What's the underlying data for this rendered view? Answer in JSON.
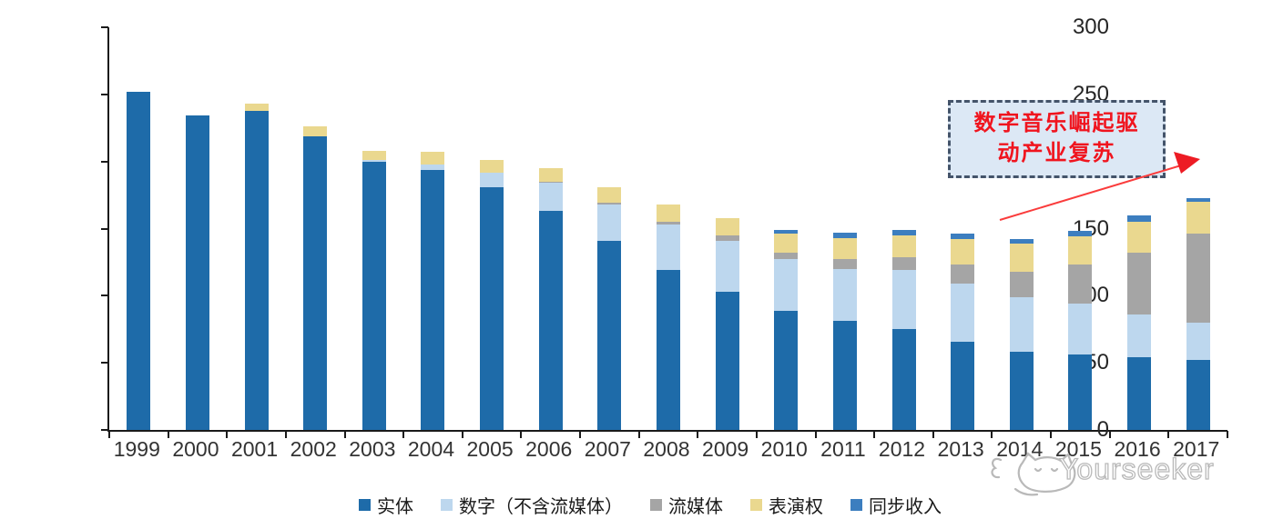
{
  "chart_data": {
    "type": "bar",
    "stacked": true,
    "categories": [
      "1999",
      "2000",
      "2001",
      "2002",
      "2003",
      "2004",
      "2005",
      "2006",
      "2007",
      "2008",
      "2009",
      "2010",
      "2011",
      "2012",
      "2013",
      "2014",
      "2015",
      "2016",
      "2017"
    ],
    "series": [
      {
        "name": "实体",
        "color": "#1e6ba9",
        "values": [
          252,
          234,
          238,
          219,
          200,
          194,
          181,
          163,
          141,
          119,
          103,
          89,
          81,
          75,
          66,
          58,
          56,
          54,
          52
        ]
      },
      {
        "name": "数字（不含流媒体）",
        "color": "#bdd7ee",
        "values": [
          0,
          0,
          0,
          0,
          1,
          4,
          11,
          21,
          27,
          34,
          38,
          38,
          39,
          44,
          43,
          41,
          38,
          32,
          28
        ]
      },
      {
        "name": "流媒体",
        "color": "#a5a5a5",
        "values": [
          0,
          0,
          0,
          0,
          0,
          0,
          0,
          1,
          1,
          2,
          4,
          5,
          7,
          10,
          14,
          19,
          29,
          46,
          66
        ]
      },
      {
        "name": "表演权",
        "color": "#ead88f",
        "values": [
          0,
          0,
          5,
          7,
          7,
          9,
          9,
          10,
          12,
          13,
          13,
          14,
          16,
          16,
          19,
          21,
          21,
          23,
          24
        ]
      },
      {
        "name": "同步收入",
        "color": "#3c7ebf",
        "values": [
          0,
          0,
          0,
          0,
          0,
          0,
          0,
          0,
          0,
          0,
          0,
          3,
          4,
          4,
          4,
          3,
          4,
          5,
          3
        ]
      }
    ],
    "ylim": [
      0,
      300
    ],
    "y_ticks": [
      0,
      50,
      100,
      150,
      200,
      250,
      300
    ],
    "xlabel": "",
    "ylabel": "",
    "title": "",
    "grid": false,
    "legend_position": "bottom"
  },
  "annotation": {
    "text": "数字音乐崛起驱动产业复苏",
    "line1": "数字音乐崛起驱",
    "line2": "动产业复苏",
    "box_fill": "#dce8f5",
    "border_color": "#44546a",
    "text_color": "#f0141e",
    "arrow_color": "#fa3c3c"
  },
  "watermark": {
    "text": "Yourseeker",
    "logo": "cat-doodle-icon",
    "color": "#b9b9b9"
  }
}
